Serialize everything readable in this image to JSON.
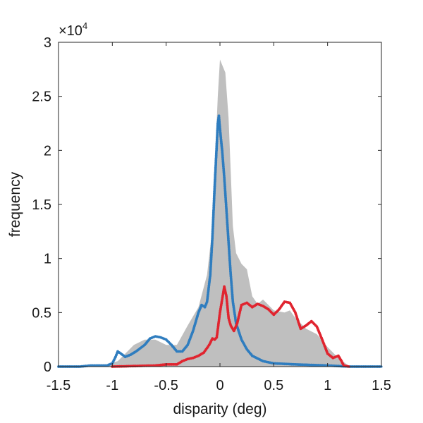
{
  "chart_data": {
    "type": "area",
    "xlabel": "disparity (deg)",
    "ylabel": "frequency",
    "y_exponent_base": "×10",
    "y_exponent_power": "4",
    "xlim": [
      -1.5,
      1.5
    ],
    "ylim": [
      0,
      3
    ],
    "x_ticks": [
      -1.5,
      -1,
      -0.5,
      0,
      0.5,
      1,
      1.5
    ],
    "x_tick_labels": [
      "-1.5",
      "-1",
      "-0.5",
      "0",
      "0.5",
      "1",
      "1.5"
    ],
    "y_ticks": [
      0,
      0.5,
      1,
      1.5,
      2,
      2.5,
      3
    ],
    "y_tick_labels": [
      "0",
      "0.5",
      "1",
      "1.5",
      "2",
      "2.5",
      "3"
    ],
    "grid": false,
    "legend": "none",
    "series": [
      {
        "style": "filled-area",
        "color": "#bfbfbf",
        "points": [
          [
            -1.5,
            0
          ],
          [
            -1.2,
            0
          ],
          [
            -1.05,
            0.02
          ],
          [
            -0.95,
            0.05
          ],
          [
            -0.9,
            0.1
          ],
          [
            -0.8,
            0.2
          ],
          [
            -0.7,
            0.25
          ],
          [
            -0.6,
            0.25
          ],
          [
            -0.5,
            0.2
          ],
          [
            -0.4,
            0.2
          ],
          [
            -0.3,
            0.38
          ],
          [
            -0.2,
            0.55
          ],
          [
            -0.12,
            0.85
          ],
          [
            -0.08,
            1.2
          ],
          [
            -0.05,
            1.8
          ],
          [
            -0.02,
            2.5
          ],
          [
            0,
            2.84
          ],
          [
            0.05,
            2.72
          ],
          [
            0.08,
            2.3
          ],
          [
            0.1,
            1.8
          ],
          [
            0.12,
            1.3
          ],
          [
            0.15,
            1.05
          ],
          [
            0.2,
            0.95
          ],
          [
            0.25,
            0.9
          ],
          [
            0.3,
            0.65
          ],
          [
            0.35,
            0.58
          ],
          [
            0.4,
            0.62
          ],
          [
            0.5,
            0.52
          ],
          [
            0.6,
            0.5
          ],
          [
            0.65,
            0.52
          ],
          [
            0.7,
            0.45
          ],
          [
            0.8,
            0.35
          ],
          [
            0.9,
            0.3
          ],
          [
            1.0,
            0.18
          ],
          [
            1.1,
            0.08
          ],
          [
            1.18,
            0.02
          ],
          [
            1.2,
            0
          ],
          [
            1.5,
            0
          ]
        ]
      },
      {
        "style": "line-markers",
        "color": "#2f7dbf",
        "points": [
          [
            -1.5,
            0
          ],
          [
            -1.3,
            0
          ],
          [
            -1.2,
            0.01
          ],
          [
            -1.05,
            0.01
          ],
          [
            -1.0,
            0.03
          ],
          [
            -0.97,
            0.09
          ],
          [
            -0.95,
            0.14
          ],
          [
            -0.92,
            0.12
          ],
          [
            -0.88,
            0.09
          ],
          [
            -0.83,
            0.11
          ],
          [
            -0.78,
            0.14
          ],
          [
            -0.7,
            0.2
          ],
          [
            -0.65,
            0.26
          ],
          [
            -0.6,
            0.28
          ],
          [
            -0.55,
            0.27
          ],
          [
            -0.5,
            0.25
          ],
          [
            -0.45,
            0.2
          ],
          [
            -0.4,
            0.14
          ],
          [
            -0.35,
            0.14
          ],
          [
            -0.3,
            0.2
          ],
          [
            -0.25,
            0.33
          ],
          [
            -0.2,
            0.5
          ],
          [
            -0.17,
            0.57
          ],
          [
            -0.14,
            0.55
          ],
          [
            -0.12,
            0.6
          ],
          [
            -0.09,
            0.85
          ],
          [
            -0.07,
            1.2
          ],
          [
            -0.05,
            1.65
          ],
          [
            -0.03,
            2.05
          ],
          [
            -0.02,
            2.25
          ],
          [
            -0.01,
            2.32
          ],
          [
            0,
            2.2
          ],
          [
            0.02,
            2.0
          ],
          [
            0.04,
            1.75
          ],
          [
            0.06,
            1.45
          ],
          [
            0.08,
            1.15
          ],
          [
            0.1,
            0.85
          ],
          [
            0.12,
            0.6
          ],
          [
            0.15,
            0.4
          ],
          [
            0.2,
            0.25
          ],
          [
            0.25,
            0.16
          ],
          [
            0.3,
            0.1
          ],
          [
            0.4,
            0.05
          ],
          [
            0.5,
            0.03
          ],
          [
            0.7,
            0.02
          ],
          [
            1.0,
            0.01
          ],
          [
            1.2,
            0
          ],
          [
            1.5,
            0
          ]
        ]
      },
      {
        "style": "line-markers",
        "color": "#e0242f",
        "points": [
          [
            -1.0,
            0
          ],
          [
            -0.6,
            0.01
          ],
          [
            -0.5,
            0.02
          ],
          [
            -0.4,
            0.02
          ],
          [
            -0.35,
            0.05
          ],
          [
            -0.3,
            0.07
          ],
          [
            -0.25,
            0.08
          ],
          [
            -0.2,
            0.1
          ],
          [
            -0.15,
            0.13
          ],
          [
            -0.1,
            0.2
          ],
          [
            -0.07,
            0.26
          ],
          [
            -0.05,
            0.25
          ],
          [
            -0.03,
            0.27
          ],
          [
            0,
            0.5
          ],
          [
            0.02,
            0.62
          ],
          [
            0.04,
            0.74
          ],
          [
            0.06,
            0.65
          ],
          [
            0.08,
            0.45
          ],
          [
            0.1,
            0.38
          ],
          [
            0.13,
            0.33
          ],
          [
            0.16,
            0.4
          ],
          [
            0.2,
            0.57
          ],
          [
            0.25,
            0.59
          ],
          [
            0.3,
            0.55
          ],
          [
            0.35,
            0.58
          ],
          [
            0.4,
            0.56
          ],
          [
            0.45,
            0.53
          ],
          [
            0.5,
            0.48
          ],
          [
            0.55,
            0.53
          ],
          [
            0.6,
            0.6
          ],
          [
            0.65,
            0.59
          ],
          [
            0.7,
            0.5
          ],
          [
            0.75,
            0.35
          ],
          [
            0.8,
            0.38
          ],
          [
            0.85,
            0.42
          ],
          [
            0.9,
            0.37
          ],
          [
            0.95,
            0.25
          ],
          [
            1.0,
            0.12
          ],
          [
            1.05,
            0.08
          ],
          [
            1.1,
            0.1
          ],
          [
            1.13,
            0.05
          ],
          [
            1.15,
            0.01
          ],
          [
            1.2,
            0
          ]
        ]
      }
    ]
  }
}
